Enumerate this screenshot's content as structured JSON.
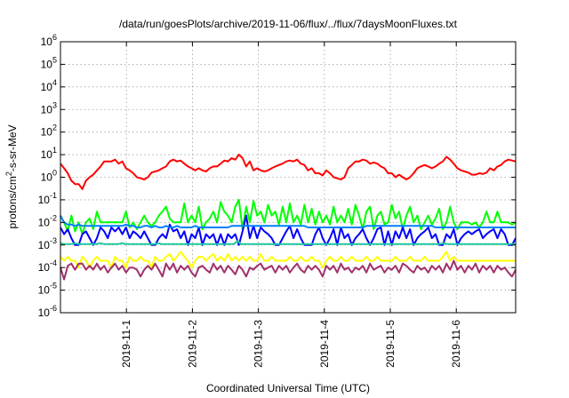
{
  "chart_data": {
    "type": "line",
    "title": "/data/run/goesPlots/archive/2019-11-06/flux/../flux/7daysMoonFluxes.txt",
    "xlabel": "Coordinated Universal Time (UTC)",
    "ylabel": "protons/cm2-s-sr-MeV",
    "ylabel_parts": {
      "base": "protons/cm",
      "sup": "2",
      "rest": "-s-sr-MeV"
    },
    "yscale": "log",
    "ylim": [
      1e-06,
      1000000.0
    ],
    "y_ticks": [
      {
        "base": "10",
        "exp": "-6",
        "value": -6
      },
      {
        "base": "10",
        "exp": "-5",
        "value": -5
      },
      {
        "base": "10",
        "exp": "-4",
        "value": -4
      },
      {
        "base": "10",
        "exp": "-3",
        "value": -3
      },
      {
        "base": "10",
        "exp": "-2",
        "value": -2
      },
      {
        "base": "10",
        "exp": "-1",
        "value": -1
      },
      {
        "base": "10",
        "exp": "0",
        "value": 0
      },
      {
        "base": "10",
        "exp": "1",
        "value": 1
      },
      {
        "base": "10",
        "exp": "2",
        "value": 2
      },
      {
        "base": "10",
        "exp": "3",
        "value": 3
      },
      {
        "base": "10",
        "exp": "4",
        "value": 4
      },
      {
        "base": "10",
        "exp": "5",
        "value": 5
      },
      {
        "base": "10",
        "exp": "6",
        "value": 6
      }
    ],
    "x_ticks": [
      {
        "label": "2019-11-1",
        "day": 1
      },
      {
        "label": "2019-11-2",
        "day": 2
      },
      {
        "label": "2019-11-3",
        "day": 3
      },
      {
        "label": "2019-11-4",
        "day": 4
      },
      {
        "label": "2019-11-5",
        "day": 5
      },
      {
        "label": "2019-11-6",
        "day": 6
      }
    ],
    "xlim_days": [
      0.0,
      6.9
    ],
    "grid": true,
    "series": [
      {
        "color": "#ff0000",
        "values": [
          4,
          2.5,
          1.5,
          0.7,
          0.5,
          0.5,
          0.3,
          0.7,
          1.0,
          1.3,
          2.0,
          3.0,
          5.0,
          5.0,
          5.0,
          6.0,
          4.0,
          5.0,
          2.5,
          2.0,
          1.5,
          1.0,
          0.9,
          0.8,
          1.0,
          1.6,
          1.8,
          2.0,
          2.5,
          3.0,
          5.0,
          6.0,
          5.0,
          5.5,
          4.0,
          3.0,
          2.5,
          2.0,
          2.5,
          2.0,
          1.8,
          2.5,
          3.0,
          3.0,
          4.0,
          5.5,
          5.0,
          7.0,
          6.0,
          10.0,
          7.0,
          3.0,
          5.0,
          2.0,
          2.5,
          2.0,
          1.8,
          2.0,
          2.5,
          3.0,
          3.5,
          4.0,
          5.0,
          5.5,
          5.0,
          6.0,
          4.0,
          3.5,
          2.0,
          2.5,
          1.5,
          1.5,
          1.2,
          2.0,
          1.5,
          1.0,
          0.9,
          0.8,
          1.0,
          2.5,
          3.5,
          5.0,
          5.0,
          6.0,
          5.5,
          4.0,
          4.5,
          4.0,
          3.0,
          2.5,
          1.5,
          1.5,
          1.0,
          1.3,
          1.0,
          0.8,
          1.0,
          1.5,
          2.5,
          3.0,
          3.5,
          3.0,
          2.5,
          3.0,
          4.0,
          5.0,
          8.0,
          6.0,
          4.0,
          2.5,
          2.0,
          1.8,
          1.6,
          1.3,
          1.3,
          1.5,
          1.4,
          1.6,
          2.5,
          2.0,
          3.0,
          3.5,
          5.0,
          6.0,
          5.5,
          5.0
        ]
      },
      {
        "color": "#00ff00",
        "values": [
          0.02,
          0.01,
          0.004,
          0.02,
          0.004,
          0.01,
          0.003,
          0.01,
          0.015,
          0.005,
          0.03,
          0.01,
          0.01,
          0.01,
          0.01,
          0.01,
          0.01,
          0.01,
          0.03,
          0.006,
          0.01,
          0.005,
          0.01,
          0.02,
          0.01,
          0.007,
          0.01,
          0.02,
          0.03,
          0.05,
          0.015,
          0.01,
          0.01,
          0.01,
          0.07,
          0.01,
          0.02,
          0.01,
          0.05,
          0.005,
          0.01,
          0.015,
          0.03,
          0.01,
          0.08,
          0.03,
          0.02,
          0.01,
          0.05,
          0.1,
          0.005,
          0.05,
          0.01,
          0.09,
          0.02,
          0.03,
          0.01,
          0.06,
          0.02,
          0.03,
          0.008,
          0.05,
          0.01,
          0.07,
          0.01,
          0.02,
          0.008,
          0.06,
          0.01,
          0.04,
          0.008,
          0.03,
          0.01,
          0.02,
          0.008,
          0.05,
          0.01,
          0.02,
          0.01,
          0.04,
          0.008,
          0.06,
          0.02,
          0.005,
          0.03,
          0.05,
          0.005,
          0.02,
          0.03,
          0.008,
          0.01,
          0.06,
          0.015,
          0.03,
          0.005,
          0.02,
          0.05,
          0.01,
          0.02,
          0.005,
          0.01,
          0.02,
          0.008,
          0.015,
          0.04,
          0.005,
          0.01,
          0.05,
          0.01,
          0.005,
          0.01,
          0.01,
          0.01,
          0.008,
          0.01,
          0.006,
          0.01,
          0.03,
          0.01,
          0.01,
          0.03,
          0.01,
          0.01,
          0.01,
          0.008,
          0.01
        ]
      },
      {
        "color": "#0000ff",
        "values": [
          0.006,
          0.003,
          0.005,
          0.002,
          0.001,
          0.001,
          0.003,
          0.004,
          0.002,
          0.001,
          0.002,
          0.006,
          0.004,
          0.002,
          0.006,
          0.004,
          0.006,
          0.003,
          0.006,
          0.002,
          0.004,
          0.003,
          0.002,
          0.004,
          0.002,
          0.001,
          0.001,
          0.002,
          0.003,
          0.002,
          0.008,
          0.004,
          0.005,
          0.002,
          0.004,
          0.001,
          0.003,
          0.002,
          0.006,
          0.001,
          0.003,
          0.002,
          0.003,
          0.001,
          0.003,
          0.001,
          0.003,
          0.002,
          0.003,
          0.001,
          0.004,
          0.02,
          0.002,
          0.007,
          0.002,
          0.006,
          0.004,
          0.003,
          0.002,
          0.001,
          0.001,
          0.002,
          0.004,
          0.007,
          0.002,
          0.005,
          0.002,
          0.001,
          0.001,
          0.001,
          0.003,
          0.006,
          0.002,
          0.001,
          0.002,
          0.005,
          0.001,
          0.006,
          0.002,
          0.003,
          0.001,
          0.002,
          0.003,
          0.005,
          0.002,
          0.001,
          0.002,
          0.005,
          0.006,
          0.001,
          0.004,
          0.001,
          0.004,
          0.002,
          0.006,
          0.002,
          0.005,
          0.001,
          0.002,
          0.003,
          0.004,
          0.006,
          0.002,
          0.003,
          0.001,
          0.001,
          0.003,
          0.002,
          0.005,
          0.001,
          0.002,
          0.003,
          0.004,
          0.003,
          0.004,
          0.005,
          0.002,
          0.003,
          0.004,
          0.005,
          0.002,
          0.005,
          0.003,
          0.001,
          0.001,
          0.002
        ]
      },
      {
        "color": "#0080ff",
        "values": [
          0.02,
          0.01,
          0.008,
          0.008,
          0.007,
          0.008,
          0.007,
          0.007,
          0.007,
          0.007,
          0.007,
          0.007,
          0.007,
          0.007,
          0.007,
          0.007,
          0.007,
          0.007,
          0.008,
          0.007,
          0.007,
          0.006,
          0.006,
          0.007,
          0.007,
          0.006,
          0.007,
          0.006,
          0.006,
          0.007,
          0.006,
          0.006,
          0.007,
          0.006,
          0.006,
          0.006,
          0.006,
          0.007,
          0.006,
          0.006,
          0.006,
          0.006,
          0.006,
          0.006,
          0.006,
          0.006,
          0.006,
          0.007,
          0.007,
          0.007,
          0.007,
          0.007,
          0.007,
          0.007,
          0.007,
          0.007,
          0.007,
          0.007,
          0.007,
          0.007,
          0.007,
          0.007,
          0.007,
          0.007,
          0.007,
          0.007,
          0.007,
          0.007,
          0.006,
          0.006,
          0.006,
          0.006,
          0.006,
          0.006,
          0.006,
          0.006,
          0.006,
          0.006,
          0.006,
          0.006,
          0.006,
          0.006,
          0.006,
          0.006,
          0.007,
          0.007,
          0.007,
          0.007,
          0.007,
          0.007,
          0.007,
          0.007,
          0.007,
          0.007,
          0.007,
          0.007,
          0.007,
          0.007,
          0.007,
          0.007,
          0.007,
          0.007,
          0.007,
          0.006,
          0.006,
          0.006,
          0.006,
          0.006,
          0.006,
          0.006,
          0.006,
          0.006,
          0.006,
          0.006,
          0.006,
          0.006,
          0.006,
          0.006,
          0.006,
          0.006,
          0.006,
          0.006,
          0.006,
          0.006,
          0.006,
          0.006
        ]
      },
      {
        "color": "#20c8a0",
        "values": [
          0.0012,
          0.0011,
          0.0011,
          0.0011,
          0.0012,
          0.0011,
          0.0011,
          0.0011,
          0.0011,
          0.0011,
          0.0011,
          0.0012,
          0.0011,
          0.0011,
          0.0011,
          0.0011,
          0.0011,
          0.0012,
          0.0011,
          0.0011,
          0.0011,
          0.0011,
          0.0011,
          0.0011,
          0.0011,
          0.0011,
          0.0011,
          0.0012,
          0.0011,
          0.0011,
          0.0011,
          0.0011,
          0.0011,
          0.0011,
          0.0011,
          0.0011,
          0.0011,
          0.0011,
          0.0011,
          0.0011,
          0.0011,
          0.0011,
          0.0011,
          0.0011,
          0.0011,
          0.0011,
          0.0011,
          0.0011,
          0.0011,
          0.0015,
          0.0011,
          0.0011,
          0.0011,
          0.0011,
          0.0011,
          0.0011,
          0.0011,
          0.0011,
          0.0011,
          0.0011,
          0.0011,
          0.0011,
          0.0011,
          0.0011,
          0.0011,
          0.0011,
          0.0011,
          0.0011,
          0.0011,
          0.0011,
          0.0011,
          0.0011,
          0.0011,
          0.0011,
          0.0011,
          0.0011,
          0.0011,
          0.0011,
          0.0011,
          0.0011,
          0.0011,
          0.0011,
          0.0011,
          0.0011,
          0.0011,
          0.0011,
          0.0011,
          0.0011,
          0.0011,
          0.0011,
          0.0011,
          0.0011,
          0.0011,
          0.0011,
          0.0011,
          0.0011,
          0.0011,
          0.0011,
          0.0011,
          0.0011,
          0.0011,
          0.0011,
          0.0011,
          0.0011,
          0.0011,
          0.0011,
          0.0012,
          0.0011,
          0.0011,
          0.0011,
          0.0011,
          0.0011,
          0.0011,
          0.0011,
          0.0011,
          0.0011,
          0.0011,
          0.0011,
          0.0011,
          0.0011,
          0.0011,
          0.0011,
          0.0011,
          0.0011,
          0.0011,
          0.0011,
          0.0011
        ]
      },
      {
        "color": "#ffff00",
        "values": [
          0.0003,
          0.0002,
          0.0003,
          0.0002,
          0.0002,
          0.0001,
          0.0003,
          0.0002,
          0.0001,
          0.0002,
          0.0003,
          0.0002,
          0.0002,
          0.0002,
          0.0001,
          0.0003,
          0.0002,
          0.0002,
          0.0001,
          0.0003,
          0.0002,
          0.0002,
          0.0003,
          0.0002,
          0.0002,
          0.0001,
          0.0003,
          0.0002,
          0.0002,
          0.0003,
          0.0004,
          0.0002,
          0.0003,
          0.0005,
          0.0003,
          0.0002,
          0.0001,
          0.0002,
          0.0003,
          0.0003,
          0.0002,
          0.0003,
          0.0004,
          0.0002,
          0.0003,
          0.0002,
          0.0004,
          0.0002,
          0.0003,
          0.0002,
          0.0003,
          0.0002,
          0.0003,
          0.0002,
          0.0002,
          0.0004,
          0.0002,
          0.0002,
          0.0003,
          0.0002,
          0.0002,
          0.0002,
          0.0002,
          0.0003,
          0.0002,
          0.0002,
          0.0003,
          0.0002,
          0.0002,
          0.0003,
          0.0002,
          0.0002,
          0.0001,
          0.0002,
          0.0003,
          0.0002,
          0.0002,
          0.0003,
          0.0002,
          0.0002,
          0.0003,
          0.0002,
          0.0002,
          0.0002,
          0.0003,
          0.0002,
          0.0002,
          0.0003,
          0.0002,
          0.0002,
          0.0002,
          0.0002,
          0.0003,
          0.0002,
          0.0002,
          0.0002,
          0.0003,
          0.0002,
          0.0002,
          0.0002,
          0.0003,
          0.0002,
          0.0002,
          0.0002,
          0.0002,
          0.0003,
          0.0005,
          0.0002,
          0.0003,
          0.0002,
          0.0002,
          0.0002,
          0.0002,
          0.0002,
          0.0002,
          0.0002,
          0.0002,
          0.0002,
          0.0002,
          0.0002,
          0.0002,
          0.0002,
          0.0002,
          0.0002,
          0.0002,
          0.0002
        ]
      },
      {
        "color": "#a0306a",
        "values": [
          0.0001,
          3e-05,
          0.00012,
          0.00015,
          8e-05,
          0.00015,
          0.00015,
          8e-05,
          0.00012,
          8e-05,
          0.00015,
          8e-05,
          0.00012,
          6e-05,
          0.0001,
          0.00015,
          8e-05,
          0.00012,
          6e-05,
          0.0001,
          0.0001,
          8e-05,
          4e-05,
          8e-05,
          0.00012,
          8e-05,
          0.00015,
          8e-05,
          4e-05,
          0.00015,
          8e-05,
          0.00015,
          6e-05,
          0.00012,
          8e-05,
          0.00012,
          6e-05,
          4e-05,
          0.0001,
          0.00012,
          8e-05,
          6e-05,
          0.00015,
          8e-05,
          0.00012,
          6e-05,
          0.00012,
          8e-05,
          5e-05,
          0.00012,
          8e-05,
          4e-05,
          0.0001,
          8e-05,
          0.00012,
          0.00015,
          8e-05,
          0.0001,
          0.00012,
          6e-05,
          0.00012,
          8e-05,
          0.00012,
          6e-05,
          0.0001,
          0.00015,
          8e-05,
          6e-05,
          0.00012,
          8e-05,
          0.00012,
          8e-05,
          4e-05,
          0.00012,
          8e-05,
          0.00012,
          6e-05,
          0.00015,
          8e-05,
          0.0001,
          6e-05,
          0.0001,
          8e-05,
          0.00012,
          6e-05,
          0.00015,
          8e-05,
          0.0001,
          0.00012,
          6e-05,
          0.0001,
          8e-05,
          0.00012,
          6e-05,
          0.00015,
          0.00012,
          8e-05,
          6e-05,
          0.00012,
          8e-05,
          0.0001,
          6e-05,
          0.00012,
          8e-05,
          0.00012,
          6e-05,
          0.00015,
          8e-05,
          0.0002,
          8e-05,
          0.00012,
          6e-05,
          0.00012,
          8e-05,
          0.00015,
          6e-05,
          0.00012,
          8e-05,
          0.00012,
          6e-05,
          0.00012,
          8e-05,
          0.0001,
          6e-05,
          4e-05,
          8e-05
        ]
      }
    ]
  }
}
